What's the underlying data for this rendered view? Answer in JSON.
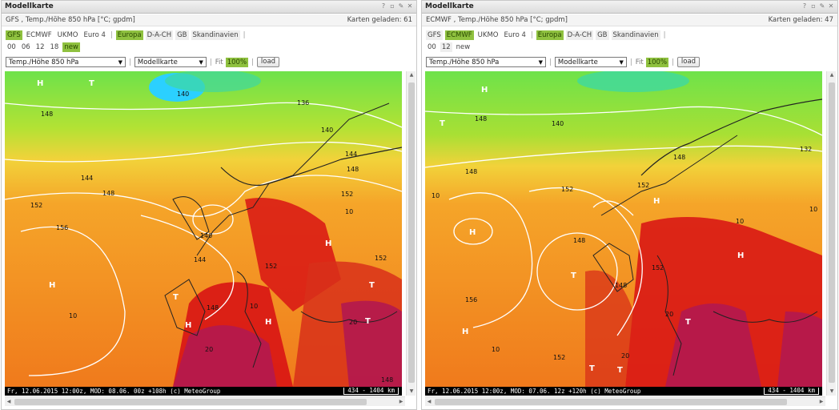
{
  "panels": [
    {
      "title": "Modellkarte",
      "model_label": "GFS , Temp./Höhe 850 hPa [°C; gpdm]",
      "loaded": "Karten geladen: 61",
      "models": [
        {
          "label": "GFS",
          "active": true
        },
        {
          "label": "ECMWF",
          "active": false
        },
        {
          "label": "UKMO",
          "active": false
        },
        {
          "label": "Euro 4",
          "active": false
        }
      ],
      "regions": [
        {
          "label": "Europa",
          "active": true
        },
        {
          "label": "D-A-CH",
          "active": false
        },
        {
          "label": "GB",
          "active": false
        },
        {
          "label": "Skandinavien",
          "active": false
        }
      ],
      "runs": [
        {
          "label": "00",
          "active": false
        },
        {
          "label": "06",
          "active": false
        },
        {
          "label": "12",
          "active": false
        },
        {
          "label": "18",
          "active": false
        },
        {
          "label": "new",
          "active": true
        }
      ],
      "param_select": "Temp./Höhe 850 hPa",
      "map_select": "Modellkarte",
      "fit": "Fit",
      "zoom": "100%",
      "load": "load",
      "footer": "Fr, 12.06.2015 12:00z, MOD: 08.06. 00z +108h (c) MeteoGroup",
      "scale": "434 - 1404 km",
      "map_labels": [
        "H",
        "T",
        "148",
        "140",
        "136",
        "140",
        "144",
        "144",
        "148",
        "152",
        "156",
        "152",
        "144",
        "140",
        "148",
        "152",
        "148",
        "152",
        "148",
        "T",
        "H",
        "H",
        "H",
        "H",
        "T",
        "10",
        "10",
        "10",
        "20",
        "20",
        "T"
      ]
    },
    {
      "title": "Modellkarte",
      "model_label": "ECMWF , Temp./Höhe 850 hPa [°C; gpdm]",
      "loaded": "Karten geladen: 47",
      "models": [
        {
          "label": "GFS",
          "active": false
        },
        {
          "label": "ECMWF",
          "active": true
        },
        {
          "label": "UKMO",
          "active": false
        },
        {
          "label": "Euro 4",
          "active": false
        }
      ],
      "regions": [
        {
          "label": "Europa",
          "active": true
        },
        {
          "label": "D-A-CH",
          "active": false
        },
        {
          "label": "GB",
          "active": false
        },
        {
          "label": "Skandinavien",
          "active": false
        }
      ],
      "runs": [
        {
          "label": "00",
          "active": false
        },
        {
          "label": "12",
          "active": false
        },
        {
          "label": "new",
          "active": false
        }
      ],
      "param_select": "Temp./Höhe 850 hPa",
      "map_select": "Modellkarte",
      "fit": "Fit",
      "zoom": "100%",
      "load": "load",
      "footer": "Fr, 12.06.2015 12:00z, MOD: 07.06. 12z +120h (c) MeteoGroup",
      "scale": "434 - 1404 km",
      "map_labels": [
        "H",
        "T",
        "148",
        "140",
        "152",
        "148",
        "H",
        "H",
        "T",
        "148",
        "132",
        "148",
        "152",
        "152",
        "148",
        "156",
        "152",
        "H",
        "H",
        "T",
        "T",
        "T",
        "10",
        "10",
        "10",
        "10",
        "20",
        "20"
      ]
    }
  ],
  "colors": {
    "active_chip": "#8fc13f",
    "map_cold": "#2bd0ff",
    "map_cool": "#6ee24a",
    "map_mild": "#f2d23a",
    "map_warm": "#f07a1c",
    "map_hot": "#d81414",
    "map_very_hot": "#b2184f"
  }
}
